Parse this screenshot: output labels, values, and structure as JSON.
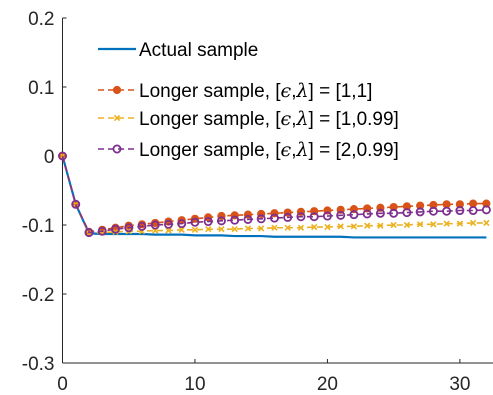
{
  "chart_data": {
    "type": "line",
    "title": "",
    "xlabel": "",
    "ylabel": "",
    "xlim": [
      0,
      32.5
    ],
    "ylim": [
      -0.3,
      0.2
    ],
    "xticks": [
      0,
      10,
      20,
      30
    ],
    "xtick_labels": [
      "0",
      "10",
      "20",
      "30"
    ],
    "yticks": [
      -0.3,
      -0.2,
      -0.1,
      0,
      0.1,
      0.2
    ],
    "ytick_labels": [
      "-0.3",
      "-0.2",
      "-0.1",
      "0",
      "0.1",
      "0.2"
    ],
    "grid": false,
    "legend_position": "top-left",
    "legend_entries": [
      {
        "prefix": "Actual sample",
        "eps": "",
        "lam": "",
        "suffix": ""
      },
      {
        "prefix": "Longer sample, [",
        "eps": "ϵ",
        "lam": "λ",
        "suffix": "] = [1,1]"
      },
      {
        "prefix": "Longer sample, [",
        "eps": "ϵ",
        "lam": "λ",
        "suffix": "] = [1,0.99]"
      },
      {
        "prefix": "Longer sample, [",
        "eps": "ϵ",
        "lam": "λ",
        "suffix": "] = [2,0.99]"
      }
    ],
    "series": [
      {
        "name": "Actual sample",
        "color": "#0072BD",
        "marker": "none",
        "dash": "solid",
        "x": [
          0,
          1,
          2,
          3,
          4,
          5,
          6,
          7,
          8,
          9,
          10,
          11,
          12,
          13,
          14,
          15,
          16,
          17,
          18,
          19,
          20,
          21,
          22,
          23,
          24,
          25,
          26,
          27,
          28,
          29,
          30,
          31,
          32
        ],
        "y": [
          0,
          -0.07,
          -0.112,
          -0.113,
          -0.113,
          -0.113,
          -0.113,
          -0.114,
          -0.114,
          -0.114,
          -0.115,
          -0.115,
          -0.115,
          -0.116,
          -0.116,
          -0.116,
          -0.117,
          -0.117,
          -0.117,
          -0.117,
          -0.117,
          -0.117,
          -0.118,
          -0.118,
          -0.118,
          -0.118,
          -0.118,
          -0.118,
          -0.118,
          -0.118,
          -0.118,
          -0.118,
          -0.118
        ]
      },
      {
        "name": "Longer sample, [ϵ,λ] = [1,1]",
        "color": "#D95319",
        "marker": "dot",
        "dash": "dashed",
        "x": [
          0,
          1,
          2,
          3,
          4,
          5,
          6,
          7,
          8,
          9,
          10,
          11,
          12,
          13,
          14,
          15,
          16,
          17,
          18,
          19,
          20,
          21,
          22,
          23,
          24,
          25,
          26,
          27,
          28,
          29,
          30,
          31,
          32
        ],
        "y": [
          0,
          -0.07,
          -0.11,
          -0.107,
          -0.104,
          -0.101,
          -0.099,
          -0.097,
          -0.095,
          -0.093,
          -0.091,
          -0.089,
          -0.087,
          -0.086,
          -0.085,
          -0.084,
          -0.083,
          -0.082,
          -0.081,
          -0.08,
          -0.079,
          -0.078,
          -0.077,
          -0.076,
          -0.075,
          -0.074,
          -0.073,
          -0.072,
          -0.071,
          -0.07,
          -0.07,
          -0.069,
          -0.069
        ]
      },
      {
        "name": "Longer sample, [ϵ,λ] = [1,0.99]",
        "color": "#EDB120",
        "marker": "x",
        "dash": "dashed",
        "x": [
          0,
          1,
          2,
          3,
          4,
          5,
          6,
          7,
          8,
          9,
          10,
          11,
          12,
          13,
          14,
          15,
          16,
          17,
          18,
          19,
          20,
          21,
          22,
          23,
          24,
          25,
          26,
          27,
          28,
          29,
          30,
          31,
          32
        ],
        "y": [
          0,
          -0.07,
          -0.112,
          -0.111,
          -0.11,
          -0.109,
          -0.109,
          -0.108,
          -0.108,
          -0.107,
          -0.107,
          -0.106,
          -0.106,
          -0.106,
          -0.105,
          -0.105,
          -0.104,
          -0.104,
          -0.104,
          -0.103,
          -0.103,
          -0.102,
          -0.102,
          -0.101,
          -0.101,
          -0.1,
          -0.1,
          -0.099,
          -0.099,
          -0.098,
          -0.098,
          -0.097,
          -0.097
        ]
      },
      {
        "name": "Longer sample, [ϵ,λ] = [2,0.99]",
        "color": "#7E2F8E",
        "marker": "o",
        "dash": "dashed",
        "x": [
          0,
          1,
          2,
          3,
          4,
          5,
          6,
          7,
          8,
          9,
          10,
          11,
          12,
          13,
          14,
          15,
          16,
          17,
          18,
          19,
          20,
          21,
          22,
          23,
          24,
          25,
          26,
          27,
          28,
          29,
          30,
          31,
          32
        ],
        "y": [
          0,
          -0.07,
          -0.111,
          -0.109,
          -0.106,
          -0.104,
          -0.102,
          -0.1,
          -0.099,
          -0.098,
          -0.096,
          -0.095,
          -0.094,
          -0.093,
          -0.092,
          -0.091,
          -0.09,
          -0.089,
          -0.088,
          -0.088,
          -0.087,
          -0.086,
          -0.085,
          -0.084,
          -0.083,
          -0.083,
          -0.082,
          -0.081,
          -0.08,
          -0.08,
          -0.079,
          -0.079,
          -0.078
        ]
      }
    ]
  }
}
